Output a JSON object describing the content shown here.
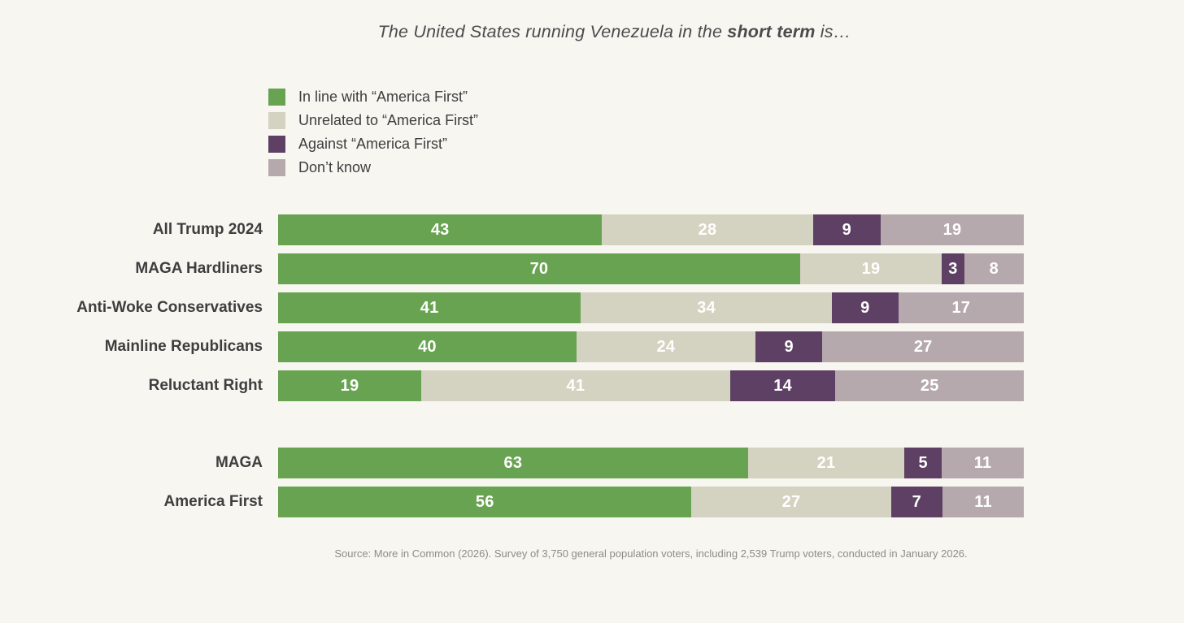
{
  "title": {
    "prefix": "The United States running Venezuela in the ",
    "bold": "short term",
    "suffix": " is…"
  },
  "legend": [
    {
      "label": "In line with “America First”",
      "color": "#68a351"
    },
    {
      "label": "Unrelated to “America First”",
      "color": "#d4d2c0"
    },
    {
      "label": "Against “America First”",
      "color": "#5d4063"
    },
    {
      "label": "Don’t know",
      "color": "#b5a9ae"
    }
  ],
  "chart_data": {
    "type": "bar",
    "orientation": "horizontal",
    "stacked": true,
    "units": "percent",
    "title": "The United States running Venezuela in the short term is…",
    "series_names": [
      "In line with “America First”",
      "Unrelated to “America First”",
      "Against “America First”",
      "Don’t know"
    ],
    "series_colors": [
      "#68a351",
      "#d4d2c0",
      "#5d4063",
      "#b5a9ae"
    ],
    "legend_position": "top-left",
    "grid": false,
    "groups": [
      {
        "rows": [
          {
            "label": "All Trump 2024",
            "values": [
              43,
              28,
              9,
              19
            ]
          },
          {
            "label": "MAGA Hardliners",
            "values": [
              70,
              19,
              3,
              8
            ]
          },
          {
            "label": "Anti-Woke Conservatives",
            "values": [
              41,
              34,
              9,
              17
            ]
          },
          {
            "label": "Mainline Republicans",
            "values": [
              40,
              24,
              9,
              27
            ]
          },
          {
            "label": "Reluctant Right",
            "values": [
              19,
              41,
              14,
              25
            ]
          }
        ]
      },
      {
        "rows": [
          {
            "label": "MAGA",
            "values": [
              63,
              21,
              5,
              11
            ]
          },
          {
            "label": "America First",
            "values": [
              56,
              27,
              7,
              11
            ]
          }
        ]
      }
    ]
  },
  "source": "Source: More in Common (2026). Survey of 3,750 general population voters, including 2,539 Trump voters, conducted in January 2026.",
  "colors": {
    "background": "#f8f6f0",
    "row_label_text": "#3e3e3f",
    "title_text": "#4b4b4c",
    "source_text": "#8e8c88",
    "value_text": "#ffffff"
  }
}
